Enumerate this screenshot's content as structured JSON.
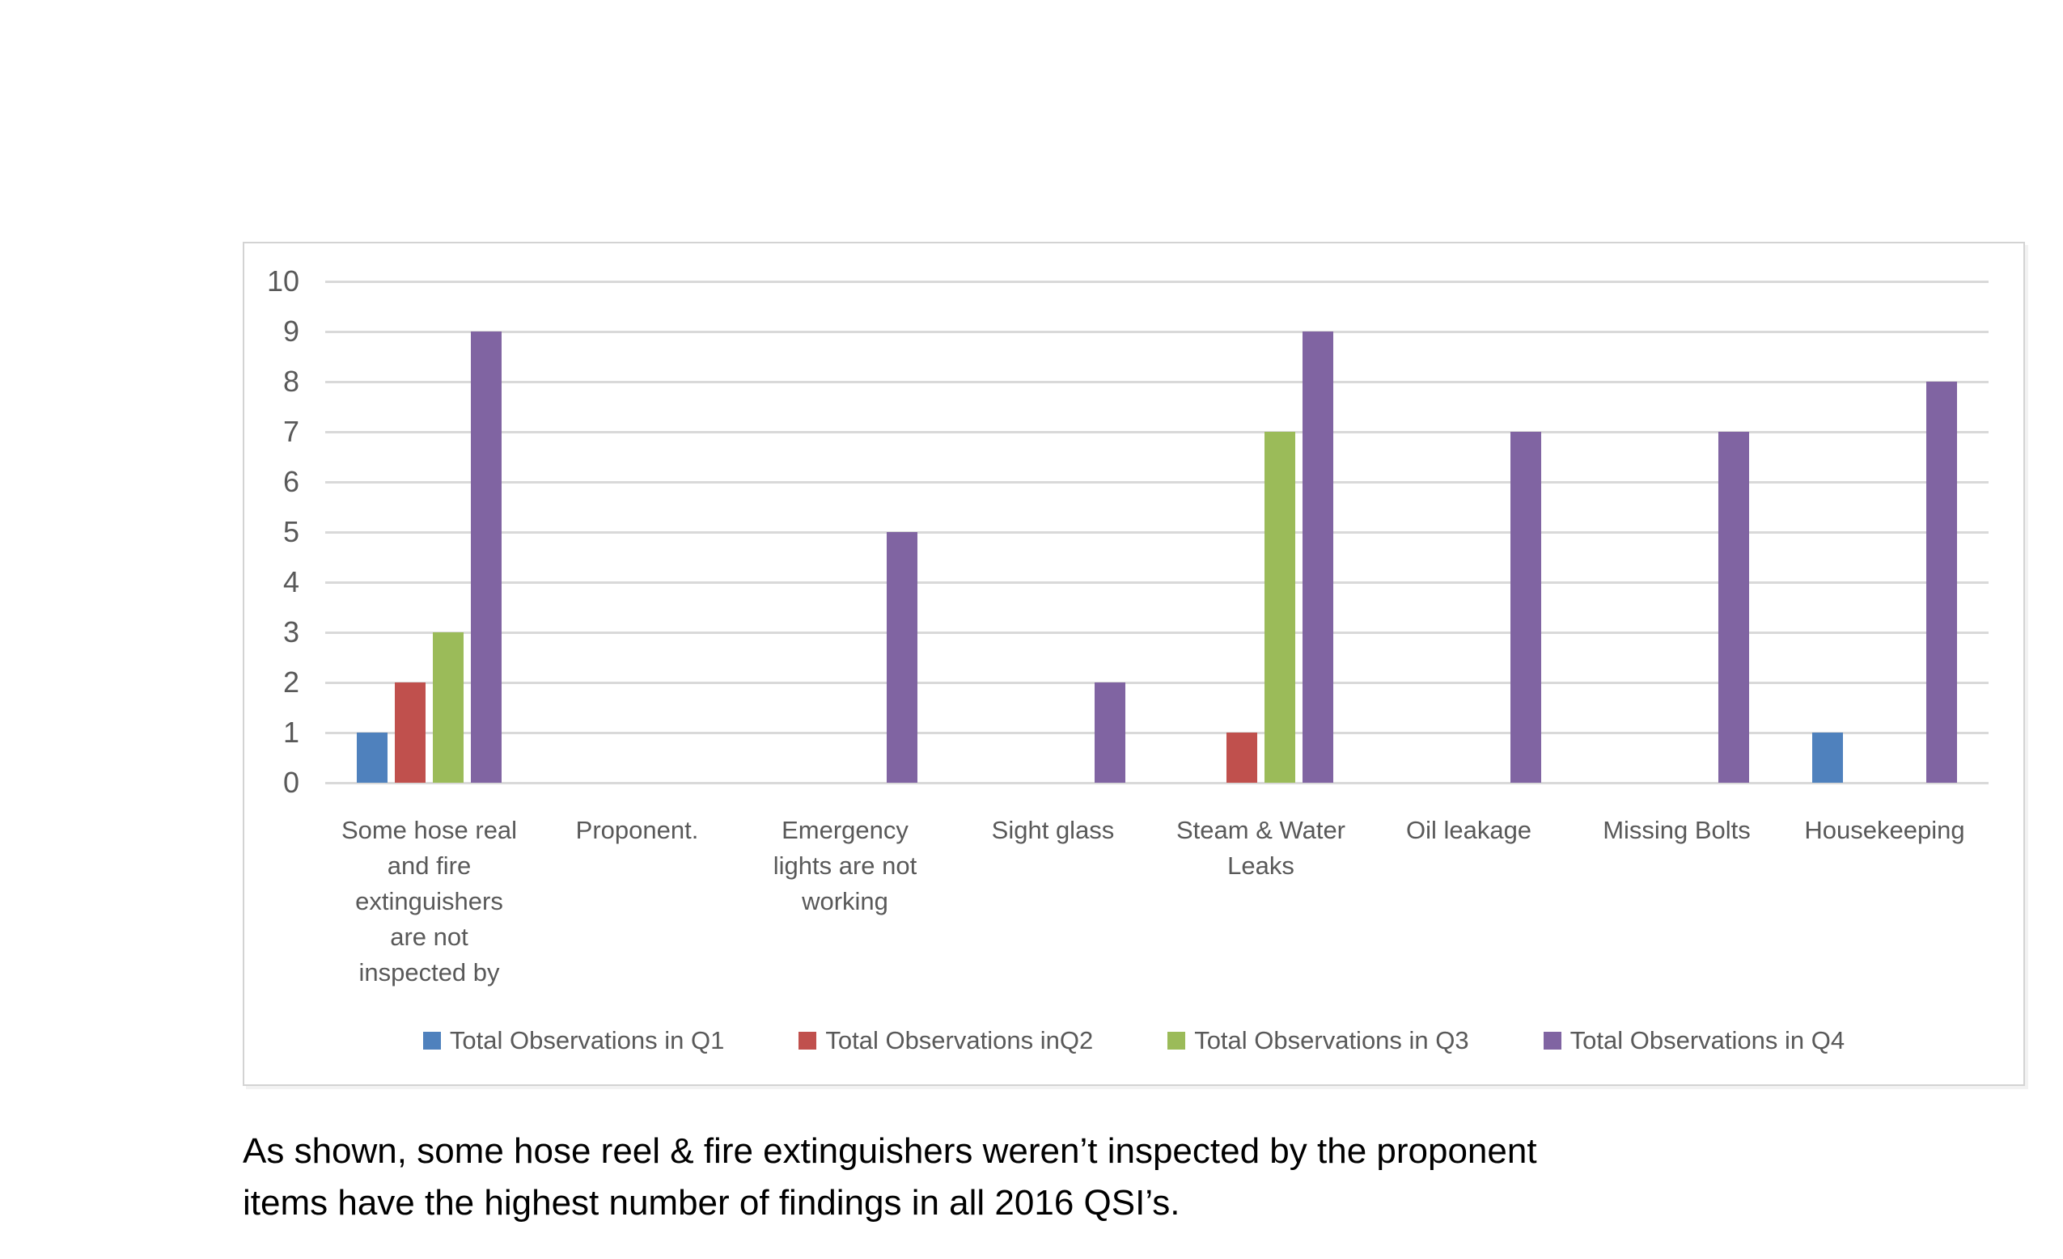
{
  "chart_data": {
    "type": "bar",
    "categories": [
      "Some hose real and fire extinguishers are not inspected by",
      "Proponent.",
      "Emergency lights are not working",
      "Sight glass",
      "Steam & Water Leaks",
      "Oil leakage",
      "Missing Bolts",
      "Housekeeping"
    ],
    "series": [
      {
        "name": "Total Observations in Q1",
        "color": "#4F81BD",
        "values": [
          1,
          0,
          0,
          0,
          0,
          0,
          0,
          1
        ]
      },
      {
        "name": "Total Observations inQ2",
        "color": "#C0504D",
        "values": [
          2,
          0,
          0,
          0,
          1,
          0,
          0,
          0
        ]
      },
      {
        "name": "Total Observations in Q3",
        "color": "#9BBB59",
        "values": [
          3,
          0,
          0,
          0,
          7,
          0,
          0,
          0
        ]
      },
      {
        "name": "Total Observations in Q4",
        "color": "#8064A2",
        "values": [
          9,
          0,
          5,
          2,
          9,
          7,
          7,
          8
        ]
      }
    ],
    "title": "",
    "xlabel": "",
    "ylabel": "",
    "ylim": [
      0,
      10
    ],
    "yticks": [
      0,
      1,
      2,
      3,
      4,
      5,
      6,
      7,
      8,
      9,
      10
    ],
    "grid": true,
    "legend_position": "bottom"
  },
  "caption": {
    "line1": "As shown, some hose reel & fire extinguishers weren’t inspected by the proponent",
    "line2": "items have the highest number of findings in all 2016 QSI’s."
  },
  "colors": {
    "axis_text": "#595959",
    "gridline": "#D9D9D9",
    "chart_border": "#D3D3D3",
    "caption_text": "#000000"
  }
}
